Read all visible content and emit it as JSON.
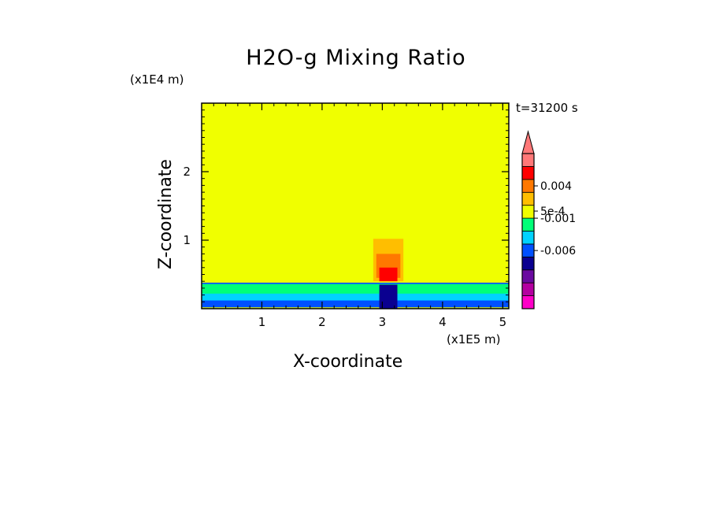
{
  "chart_data": {
    "type": "heatmap",
    "title": "H2O-g Mixing Ratio",
    "xlabel": "X-coordinate",
    "ylabel": "Z-coordinate",
    "x_scale_label": "(x1E5 m)",
    "y_scale_label": "(x1E4 m)",
    "timestamp": "t=31200 s",
    "xlim": [
      0.0,
      5.1
    ],
    "ylim": [
      0.0,
      3.0
    ],
    "x_ticks": [
      "1",
      "2",
      "3",
      "4",
      "5"
    ],
    "x_tick_values": [
      1,
      2,
      3,
      4,
      5
    ],
    "y_ticks": [
      "1",
      "2"
    ],
    "y_tick_values": [
      1,
      2
    ],
    "background_level_color": "#f0ff00",
    "colorbar": {
      "colors": [
        "#ff00c8",
        "#b400a0",
        "#6a0aa0",
        "#0a0090",
        "#0050ff",
        "#00d2ff",
        "#00ff78",
        "#f0ff00",
        "#ffbe00",
        "#ff7800",
        "#ff0000",
        "#ff7878"
      ],
      "labels": [
        {
          "text": "0.004",
          "level": 9.5
        },
        {
          "text": "5e-4",
          "level": 7.55
        },
        {
          "text": "-0.001",
          "level": 7.0
        },
        {
          "text": "-0.006",
          "level": 4.5
        }
      ],
      "extend": "max"
    },
    "regions": [
      {
        "color": "#0050ff",
        "x": [
          0.0,
          5.1
        ],
        "z": [
          0.02,
          0.38
        ]
      },
      {
        "color": "#00d2ff",
        "x": [
          0.0,
          5.1
        ],
        "z": [
          0.12,
          0.28
        ]
      },
      {
        "color": "#00ff78",
        "x": [
          0.0,
          5.1
        ],
        "z": [
          0.22,
          0.36
        ]
      },
      {
        "color": "#0a0090",
        "x": [
          2.95,
          3.25
        ],
        "z": [
          0.0,
          0.35
        ]
      },
      {
        "color": "#ffbe00",
        "x": [
          2.85,
          3.35
        ],
        "z": [
          0.4,
          1.02
        ]
      },
      {
        "color": "#ff7800",
        "x": [
          2.9,
          3.3
        ],
        "z": [
          0.45,
          0.8
        ]
      },
      {
        "color": "#ff0000",
        "x": [
          2.95,
          3.25
        ],
        "z": [
          0.4,
          0.6
        ]
      }
    ]
  }
}
